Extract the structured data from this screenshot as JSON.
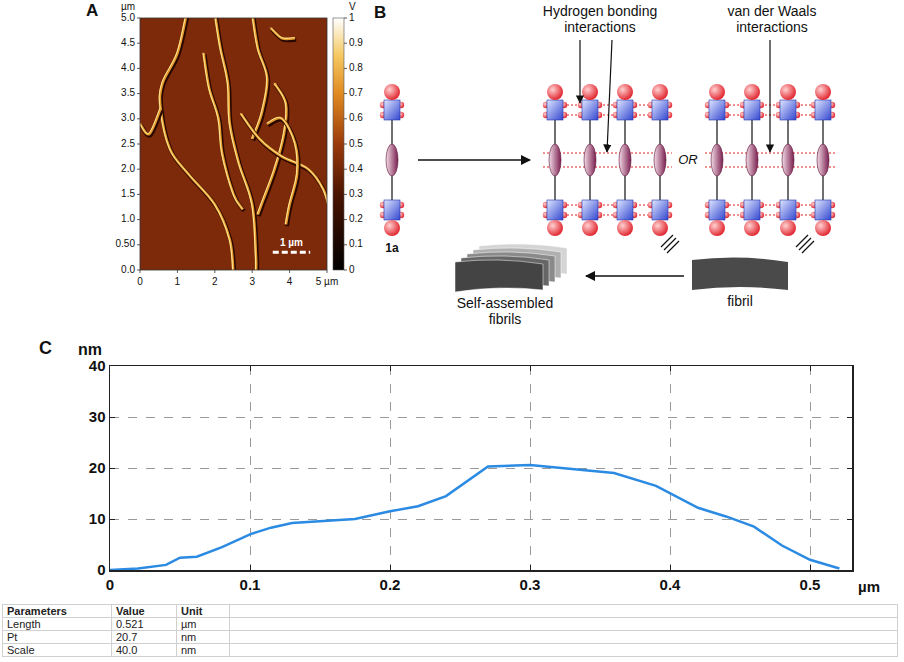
{
  "panel_a": {
    "panel_label": "A",
    "y_unit": "µm",
    "xlim": [
      0,
      5
    ],
    "ylim": [
      0,
      5
    ],
    "xticks": [
      0,
      1,
      2,
      3,
      4,
      {
        "value": 5,
        "label": "5 µm"
      }
    ],
    "yticks": [
      {
        "value": 0,
        "label": "0.0"
      },
      {
        "value": 0.5,
        "label": "0.50"
      },
      {
        "value": 1,
        "label": "1.0"
      },
      1.5,
      {
        "value": 2,
        "label": "2.0"
      },
      2.5,
      {
        "value": 3,
        "label": "3.0"
      },
      3.5,
      {
        "value": 4,
        "label": "4.0"
      },
      4.5,
      {
        "value": 5,
        "label": "5.0"
      }
    ],
    "colorbar": {
      "unit": "V",
      "range": [
        0,
        1
      ],
      "ticks": [
        0,
        0.1,
        0.2,
        0.3,
        0.4,
        0.5,
        0.6,
        0.7,
        0.8,
        0.9,
        1
      ]
    },
    "scale_bar": {
      "label": "1 µm",
      "length": 1
    }
  },
  "panel_b": {
    "panel_label": "B",
    "compound": "1a",
    "hydrogen_bonding": "Hydrogen bonding interactions",
    "van_der_waals": "van der Waals interactions",
    "or": "OR",
    "fibril": "fibril",
    "assembled": "Self-assembled fibrils"
  },
  "chart_data": {
    "type": "line",
    "panel_label": "C",
    "y_label": "nm",
    "x_label": "µm",
    "x": [
      0,
      0.02,
      0.04,
      0.05,
      0.062,
      0.08,
      0.1,
      0.115,
      0.13,
      0.15,
      0.175,
      0.2,
      0.22,
      0.24,
      0.27,
      0.3,
      0.33,
      0.36,
      0.39,
      0.42,
      0.44,
      0.46,
      0.48,
      0.5,
      0.521
    ],
    "values": [
      0,
      0.3,
      1,
      2.4,
      2.6,
      4.5,
      7,
      8.3,
      9.2,
      9.6,
      10,
      11.5,
      12.5,
      14.5,
      20.3,
      20.6,
      19.8,
      19,
      16.5,
      12.2,
      10.5,
      8.5,
      4.8,
      2,
      0.3
    ],
    "color": "#2b8ae2",
    "line_style": "solid",
    "xlim": [
      0,
      0.53
    ],
    "ylim": [
      0,
      40
    ],
    "xticks": [
      0,
      0.1,
      0.2,
      0.3,
      0.4,
      0.5
    ],
    "yticks": [
      0,
      10,
      20,
      30,
      40
    ],
    "grid": true
  },
  "table": {
    "header": [
      "Parameters",
      "Value",
      "Unit"
    ],
    "rows": [
      [
        "Length",
        "0.521",
        "µm"
      ],
      [
        "Pt",
        "20.7",
        "nm"
      ],
      [
        "Scale",
        "40.0",
        "nm"
      ]
    ]
  }
}
